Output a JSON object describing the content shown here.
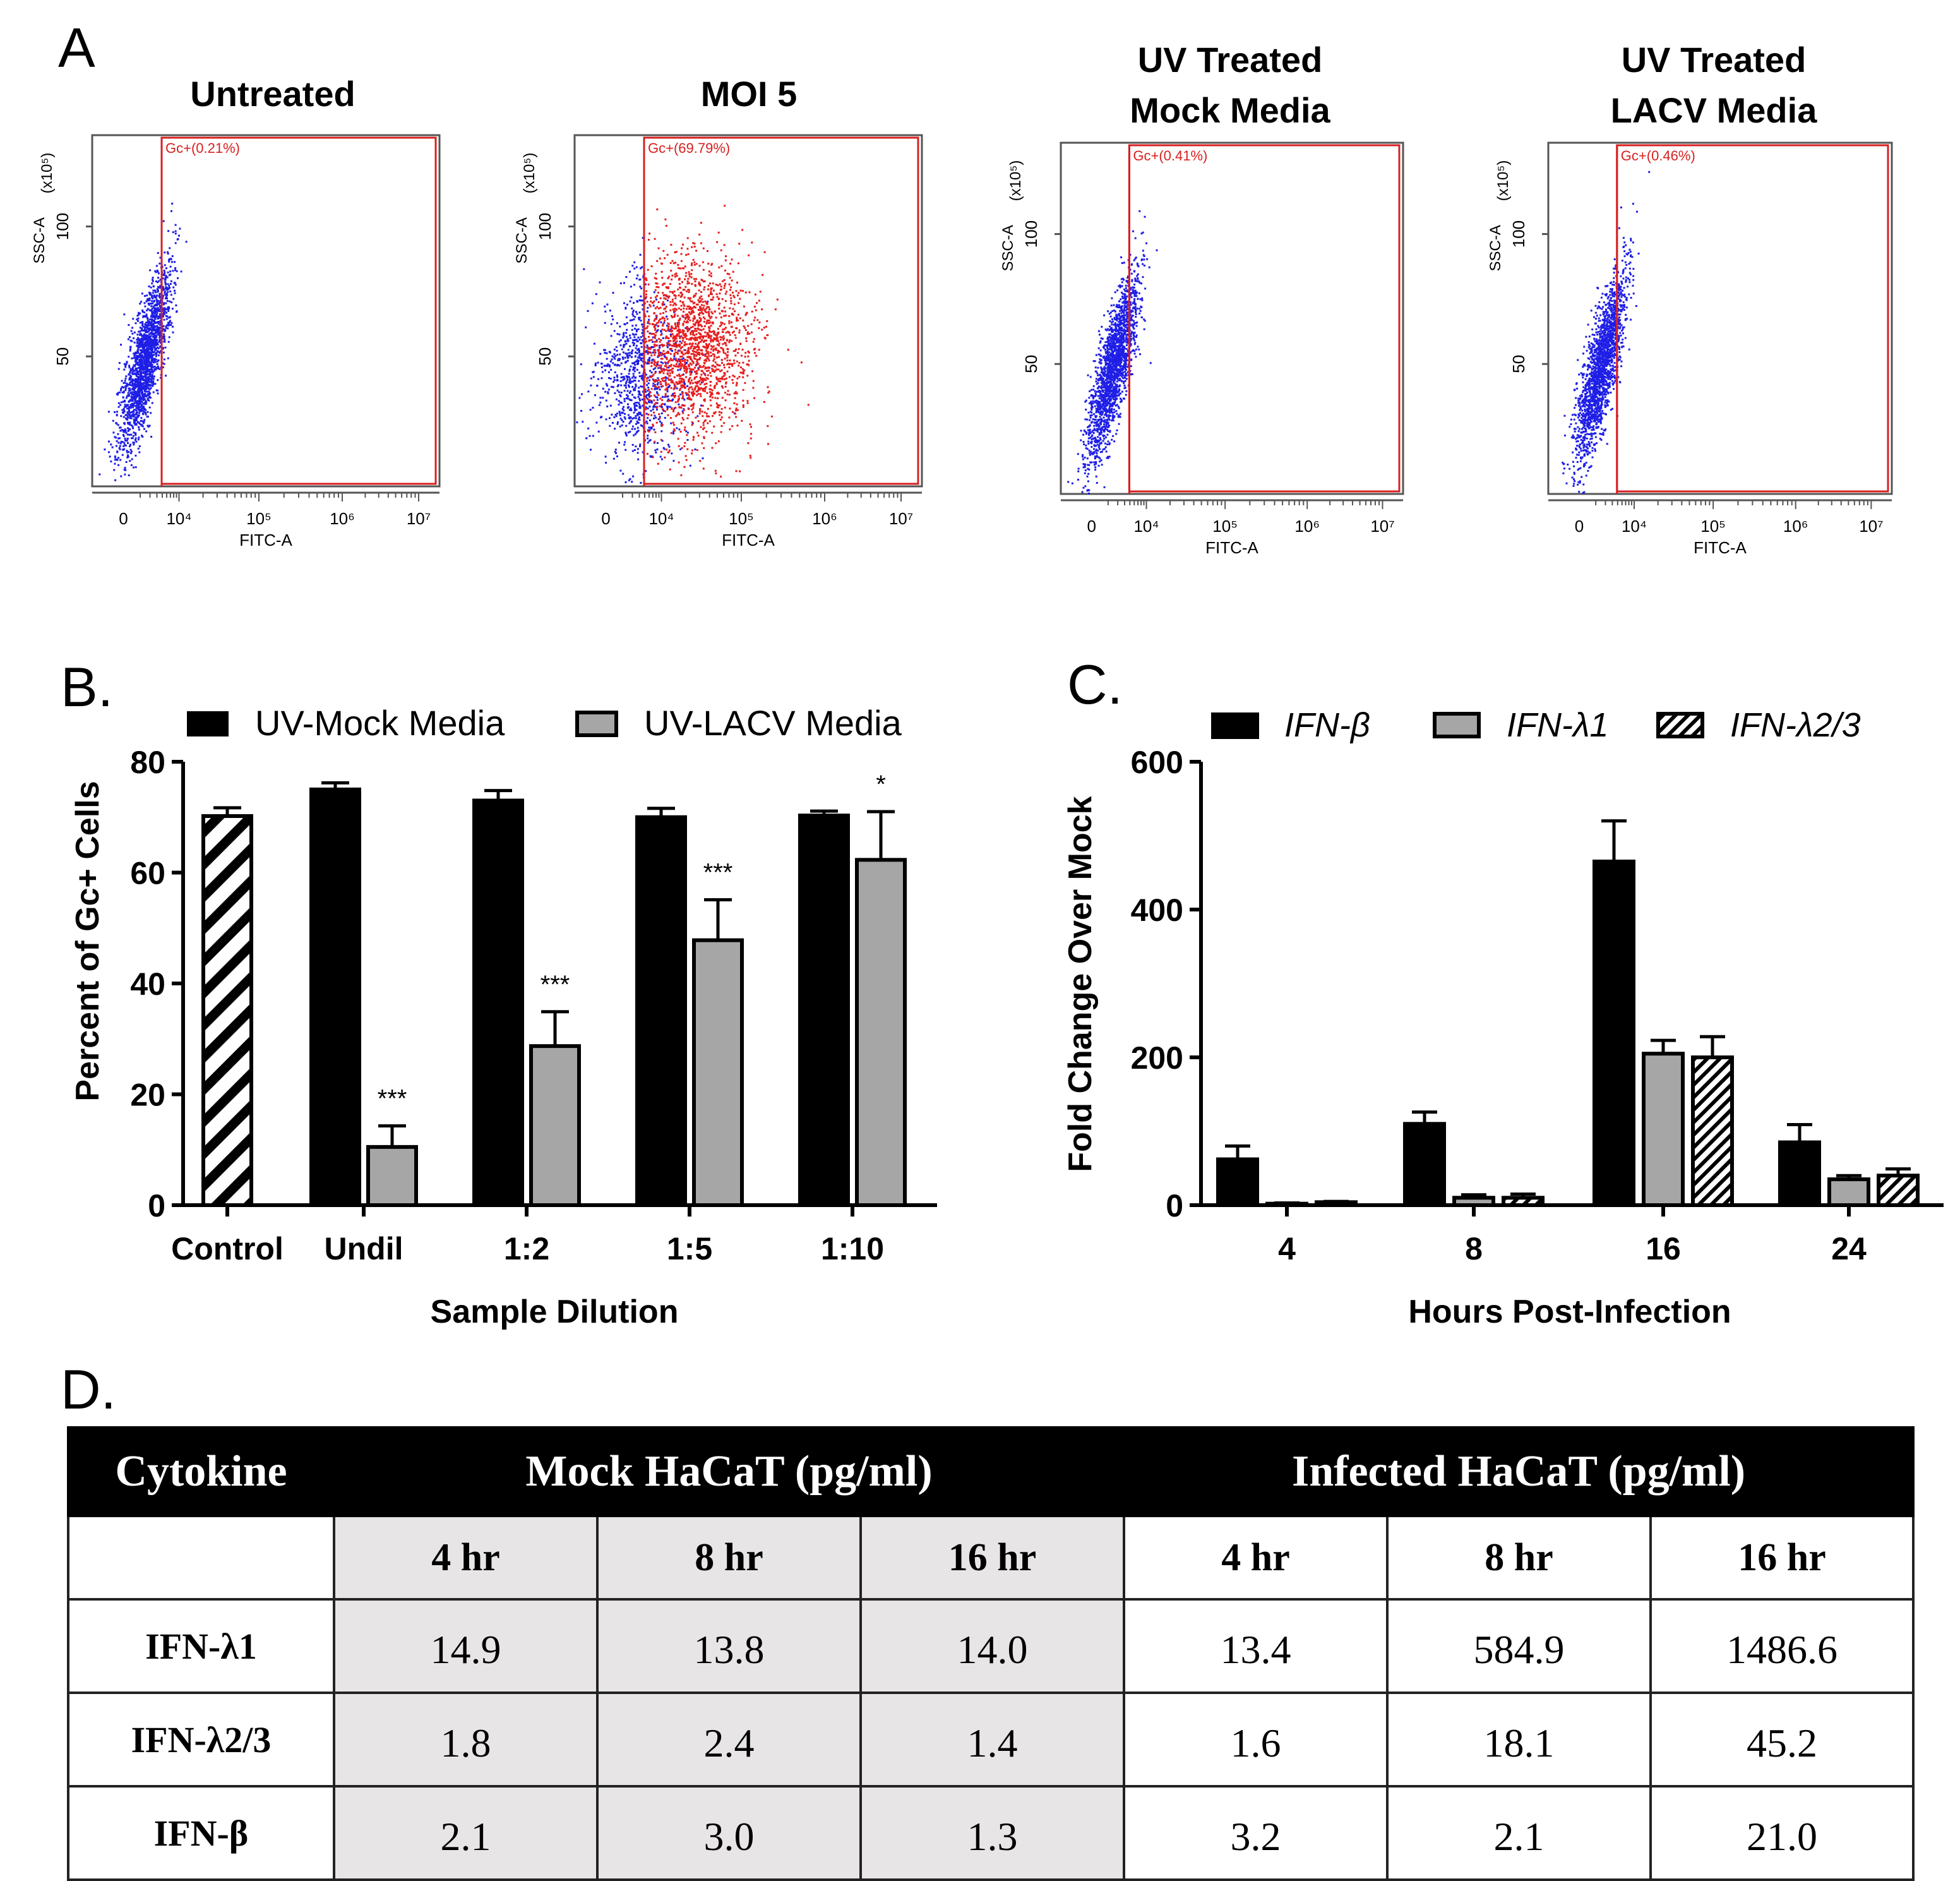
{
  "panel_a": {
    "letter": "A",
    "plots": [
      {
        "title": "Untreated",
        "gate_label": "Gc+(0.21%)"
      },
      {
        "title": "MOI 5",
        "gate_label": "Gc+(69.79%)"
      },
      {
        "title": "UV Treated Mock Media",
        "gate_label": "Gc+(0.41%)"
      },
      {
        "title": "UV Treated LACV Media",
        "gate_label": "Gc+(0.46%)"
      }
    ],
    "y_unit": "(x10⁵)",
    "y_label": "SSC-A",
    "y_ticks": [
      "100",
      "50"
    ],
    "x_label": "FITC-A",
    "x_ticks": [
      "0",
      "10⁴",
      "10⁵",
      "10⁶",
      "10⁷"
    ],
    "colors": {
      "negative": "#1e1ee6",
      "positive": "#e61e1e",
      "gate": "#d82020"
    }
  },
  "chart_data": [
    {
      "type": "bar",
      "panel": "B.",
      "categories": [
        "Control",
        "Undil",
        "1:2",
        "1:5",
        "1:10"
      ],
      "series": [
        {
          "name": "Control",
          "fill": "hatch",
          "values": [
            70.2,
            null,
            null,
            null,
            null
          ],
          "errors": [
            1.5,
            null,
            null,
            null,
            null
          ]
        },
        {
          "name": "UV-Mock Media",
          "fill": "#000000",
          "values": [
            null,
            75.0,
            73.0,
            70.0,
            70.3
          ],
          "errors": [
            null,
            1.2,
            1.8,
            1.6,
            0.8
          ]
        },
        {
          "name": "UV-LACV Media",
          "fill": "#a6a6a6",
          "values": [
            null,
            10.5,
            28.7,
            47.8,
            62.3
          ],
          "errors": [
            null,
            3.8,
            6.2,
            7.3,
            8.7
          ]
        }
      ],
      "legend": [
        "UV-Mock Media",
        "UV-LACV Media"
      ],
      "significance": [
        null,
        "***",
        "***",
        "***",
        "*"
      ],
      "ylabel": "Percent of Gc+ Cells",
      "xlabel": "Sample Dilution",
      "ylim": [
        0,
        80
      ],
      "yticks": [
        0,
        20,
        40,
        60,
        80
      ]
    },
    {
      "type": "bar",
      "panel": "C.",
      "categories": [
        "4",
        "8",
        "16",
        "24"
      ],
      "series": [
        {
          "name": "IFN-β",
          "fill": "#000000",
          "values": [
            62,
            110,
            465,
            85
          ],
          "errors": [
            18,
            16,
            55,
            24
          ]
        },
        {
          "name": "IFN-λ1",
          "fill": "#a6a6a6",
          "values": [
            2,
            10,
            205,
            35
          ],
          "errors": [
            1,
            4,
            18,
            5
          ]
        },
        {
          "name": "IFN-λ2/3",
          "fill": "hatch",
          "values": [
            4,
            10,
            200,
            40
          ],
          "errors": [
            1,
            5,
            28,
            9
          ]
        }
      ],
      "ylabel": "Fold Change Over Mock",
      "xlabel": "Hours Post-Infection",
      "ylim": [
        0,
        600
      ],
      "yticks": [
        0,
        200,
        400,
        600
      ]
    },
    {
      "type": "table",
      "panel": "D.",
      "header": {
        "col0": "Cytokine",
        "mock": "Mock HaCaT (pg/ml)",
        "infected": "Infected HaCaT (pg/ml)"
      },
      "timepoints": [
        "4 hr",
        "8 hr",
        "16 hr",
        "4 hr",
        "8 hr",
        "16 hr"
      ],
      "rows": [
        {
          "name": "IFN-λ1",
          "values": [
            "14.9",
            "13.8",
            "14.0",
            "13.4",
            "584.9",
            "1486.6"
          ]
        },
        {
          "name": "IFN-λ2/3",
          "values": [
            "1.8",
            "2.4",
            "1.4",
            "1.6",
            "18.1",
            "45.2"
          ]
        },
        {
          "name": "IFN-β",
          "values": [
            "2.1",
            "3.0",
            "1.3",
            "3.2",
            "2.1",
            "21.0"
          ]
        }
      ]
    }
  ]
}
